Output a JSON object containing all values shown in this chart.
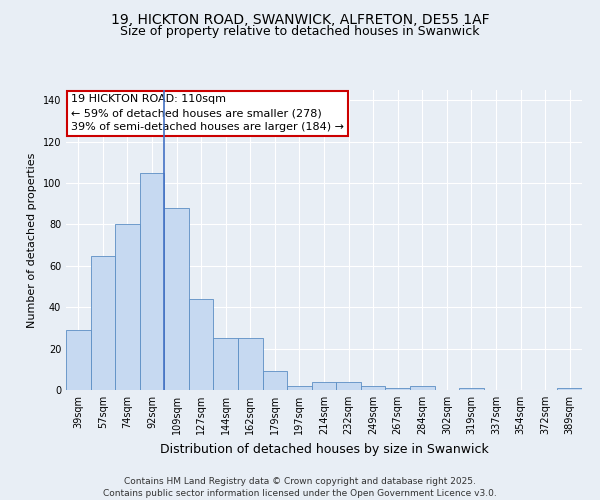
{
  "title": "19, HICKTON ROAD, SWANWICK, ALFRETON, DE55 1AF",
  "subtitle": "Size of property relative to detached houses in Swanwick",
  "xlabel": "Distribution of detached houses by size in Swanwick",
  "ylabel": "Number of detached properties",
  "bar_labels": [
    "39sqm",
    "57sqm",
    "74sqm",
    "92sqm",
    "109sqm",
    "127sqm",
    "144sqm",
    "162sqm",
    "179sqm",
    "197sqm",
    "214sqm",
    "232sqm",
    "249sqm",
    "267sqm",
    "284sqm",
    "302sqm",
    "319sqm",
    "337sqm",
    "354sqm",
    "372sqm",
    "389sqm"
  ],
  "bar_values": [
    29,
    65,
    80,
    105,
    88,
    44,
    25,
    25,
    9,
    2,
    4,
    4,
    2,
    1,
    2,
    0,
    1,
    0,
    0,
    0,
    1
  ],
  "bar_color": "#c6d9f1",
  "bar_edge_color": "#5b8ec4",
  "highlight_index": 4,
  "highlight_line_color": "#4472c4",
  "annotation_text": "19 HICKTON ROAD: 110sqm\n← 59% of detached houses are smaller (278)\n39% of semi-detached houses are larger (184) →",
  "annotation_box_color": "#ffffff",
  "annotation_box_edge": "#cc0000",
  "ylim": [
    0,
    145
  ],
  "yticks": [
    0,
    20,
    40,
    60,
    80,
    100,
    120,
    140
  ],
  "footnote": "Contains HM Land Registry data © Crown copyright and database right 2025.\nContains public sector information licensed under the Open Government Licence v3.0.",
  "background_color": "#e8eef5",
  "plot_bg_color": "#e8eef5",
  "grid_color": "#ffffff",
  "title_fontsize": 10,
  "subtitle_fontsize": 9,
  "ylabel_fontsize": 8,
  "xlabel_fontsize": 9,
  "tick_fontsize": 7,
  "annotation_fontsize": 8,
  "footnote_fontsize": 6.5
}
